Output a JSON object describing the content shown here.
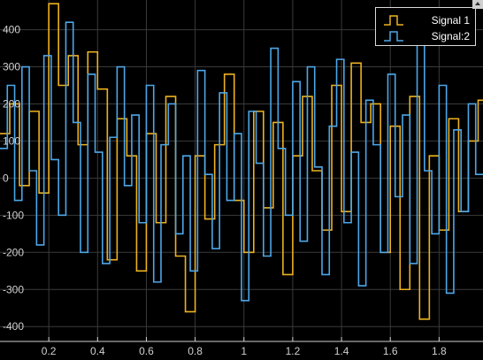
{
  "chart_data": {
    "type": "line",
    "title": "",
    "xlabel": "",
    "ylabel": "",
    "xlim": [
      0,
      1.98
    ],
    "ylim": [
      -440,
      480
    ],
    "grid": true,
    "legend_position": "top-right",
    "x_ticks": [
      "0.2",
      "0.4",
      "0.6",
      "0.8",
      "1",
      "1.2",
      "1.4",
      "1.6",
      "1.8"
    ],
    "x_tick_values": [
      0.2,
      0.4,
      0.6,
      0.8,
      1.0,
      1.2,
      1.4,
      1.6,
      1.8
    ],
    "y_ticks": [
      "400",
      "300",
      "200",
      "100",
      "0",
      "-100",
      "-200",
      "-300",
      "-400"
    ],
    "y_tick_values": [
      400,
      300,
      200,
      100,
      0,
      -100,
      -200,
      -300,
      -400
    ],
    "series": [
      {
        "name": "Signal 1",
        "color": "#EDB120",
        "step": true,
        "x": [
          0,
          0.04,
          0.08,
          0.12,
          0.16,
          0.2,
          0.24,
          0.28,
          0.32,
          0.36,
          0.4,
          0.44,
          0.48,
          0.52,
          0.56,
          0.6,
          0.64,
          0.68,
          0.72,
          0.76,
          0.8,
          0.84,
          0.88,
          0.92,
          0.96,
          1.0,
          1.04,
          1.08,
          1.12,
          1.16,
          1.2,
          1.24,
          1.28,
          1.32,
          1.36,
          1.4,
          1.44,
          1.48,
          1.52,
          1.56,
          1.6,
          1.64,
          1.68,
          1.72,
          1.76,
          1.8,
          1.84,
          1.88,
          1.92,
          1.96
        ],
        "values": [
          120,
          200,
          -20,
          180,
          -40,
          470,
          250,
          330,
          90,
          340,
          240,
          -220,
          160,
          60,
          -250,
          120,
          -120,
          220,
          -210,
          -360,
          60,
          -110,
          90,
          280,
          -60,
          -200,
          180,
          -80,
          150,
          -260,
          60,
          220,
          20,
          -140,
          250,
          -90,
          310,
          150,
          200,
          -200,
          140,
          -300,
          220,
          -380,
          60,
          -140,
          160,
          -90,
          100,
          210
        ]
      },
      {
        "name": "Signal:2",
        "color": "#4DA6E8",
        "step": true,
        "x": [
          0,
          0.03,
          0.06,
          0.09,
          0.12,
          0.15,
          0.18,
          0.21,
          0.24,
          0.27,
          0.3,
          0.33,
          0.36,
          0.39,
          0.42,
          0.45,
          0.48,
          0.51,
          0.54,
          0.57,
          0.6,
          0.63,
          0.66,
          0.69,
          0.72,
          0.75,
          0.78,
          0.81,
          0.84,
          0.87,
          0.9,
          0.93,
          0.96,
          0.99,
          1.02,
          1.05,
          1.08,
          1.11,
          1.14,
          1.17,
          1.2,
          1.23,
          1.26,
          1.29,
          1.32,
          1.35,
          1.38,
          1.41,
          1.44,
          1.47,
          1.5,
          1.53,
          1.56,
          1.59,
          1.62,
          1.65,
          1.68,
          1.71,
          1.74,
          1.77,
          1.8,
          1.83,
          1.86,
          1.89,
          1.92,
          1.95
        ],
        "values": [
          80,
          250,
          -60,
          300,
          20,
          -180,
          330,
          50,
          -100,
          420,
          150,
          -200,
          280,
          70,
          -230,
          110,
          300,
          -20,
          170,
          -120,
          250,
          -280,
          90,
          200,
          -150,
          60,
          -250,
          290,
          10,
          -190,
          230,
          -60,
          120,
          -330,
          180,
          40,
          -210,
          350,
          80,
          -100,
          260,
          -170,
          300,
          30,
          -260,
          140,
          320,
          -120,
          70,
          -290,
          210,
          90,
          -200,
          280,
          -50,
          170,
          -230,
          380,
          20,
          -150,
          250,
          -310,
          130,
          -90,
          200,
          10
        ]
      }
    ]
  },
  "legend": {
    "items": [
      {
        "label": "Signal 1",
        "color": "#EDB120"
      },
      {
        "label": "Signal:2",
        "color": "#4DA6E8"
      }
    ]
  }
}
